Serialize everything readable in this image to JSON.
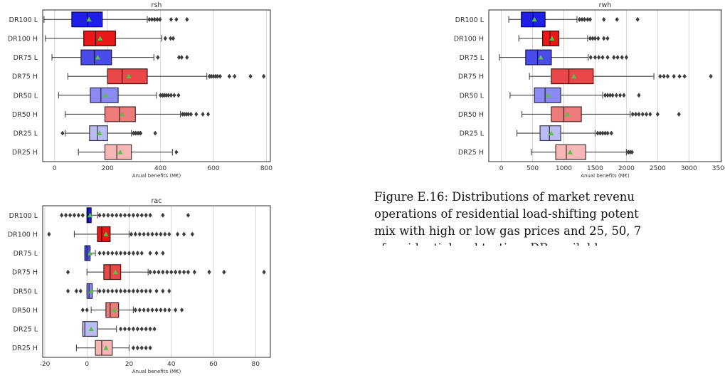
{
  "caption": {
    "lines": [
      "Figure E.16: Distributions of market revenu",
      "operations of residential load-shifting potent",
      "mix with high or low gas prices and 25, 50, 7",
      "of residential and tertiary DR available capac"
    ]
  },
  "chart_data": [
    {
      "id": "rsh",
      "type": "boxplot",
      "title": "rsh",
      "xlabel": "Anual benefits (M€)",
      "xlim": [
        -45,
        815
      ],
      "xticks": [
        0,
        200,
        400,
        600,
        800
      ],
      "grid": "vertical",
      "categories": [
        "DR100 L",
        "DR100 H",
        "DR75 L",
        "DR75 H",
        "DR50 L",
        "DR50 H",
        "DR25 L",
        "DR25 H"
      ],
      "colors": [
        "#1f1fe8",
        "#e81818",
        "#4b4bea",
        "#e84848",
        "#8a8af0",
        "#ee7b7b",
        "#bcbcf5",
        "#f5b6b6"
      ],
      "mean_marker_color": "#5cbf4a",
      "boxes": [
        {
          "whisker_low": -40,
          "q1": 65,
          "median": 125,
          "q3": 180,
          "whisker_high": 350,
          "mean": 130,
          "outliers": [
            358,
            368,
            378,
            388,
            398,
            440,
            460,
            500
          ]
        },
        {
          "whisker_low": -35,
          "q1": 110,
          "median": 155,
          "q3": 230,
          "whisker_high": 405,
          "mean": 172,
          "outliers": [
            418,
            438,
            448
          ]
        },
        {
          "whisker_low": -10,
          "q1": 100,
          "median": 150,
          "q3": 215,
          "whisker_high": 375,
          "mean": 163,
          "outliers": [
            390,
            470,
            480,
            500
          ]
        },
        {
          "whisker_low": 50,
          "q1": 200,
          "median": 255,
          "q3": 350,
          "whisker_high": 575,
          "mean": 280,
          "outliers": [
            585,
            592,
            600,
            608,
            615,
            625,
            660,
            680,
            740,
            790
          ]
        },
        {
          "whisker_low": 15,
          "q1": 135,
          "median": 175,
          "q3": 240,
          "whisker_high": 385,
          "mean": 192,
          "outliers": [
            400,
            408,
            415,
            422,
            430,
            440,
            452,
            468
          ]
        },
        {
          "whisker_low": 40,
          "q1": 190,
          "median": 245,
          "q3": 305,
          "whisker_high": 475,
          "mean": 255,
          "outliers": [
            483,
            490,
            498,
            505,
            515,
            535,
            560,
            580
          ]
        },
        {
          "whisker_low": 40,
          "q1": 132,
          "median": 162,
          "q3": 200,
          "whisker_high": 290,
          "mean": 170,
          "outliers": [
            30,
            298,
            305,
            312,
            318,
            325,
            380
          ]
        },
        {
          "whisker_low": 90,
          "q1": 190,
          "median": 235,
          "q3": 290,
          "whisker_high": 445,
          "mean": 248,
          "outliers": [
            460
          ]
        }
      ]
    },
    {
      "id": "rwh",
      "type": "boxplot",
      "title": "rwh",
      "xlabel": "Anual benefits (M€)",
      "xlim": [
        -200,
        3520
      ],
      "xticks": [
        0,
        500,
        1000,
        1500,
        2000,
        2500,
        3000,
        3500
      ],
      "grid": "vertical",
      "categories": [
        "DR100 L",
        "DR100 H",
        "DR75 L",
        "DR75 H",
        "DR50 L",
        "DR50 H",
        "DR25 L",
        "DR25 H"
      ],
      "colors": [
        "#1f1fe8",
        "#e81818",
        "#4b4bea",
        "#e84848",
        "#8a8af0",
        "#ee7b7b",
        "#bcbcf5",
        "#f5b6b6"
      ],
      "mean_marker_color": "#5cbf4a",
      "boxes": [
        {
          "whisker_low": 120,
          "q1": 320,
          "median": 510,
          "q3": 700,
          "whisker_high": 1210,
          "mean": 530,
          "outliers": [
            1250,
            1290,
            1330,
            1380,
            1420,
            1640,
            1850,
            2180
          ]
        },
        {
          "whisker_low": 280,
          "q1": 660,
          "median": 780,
          "q3": 920,
          "whisker_high": 1380,
          "mean": 810,
          "outliers": [
            1420,
            1460,
            1500,
            1550,
            1640,
            1700
          ]
        },
        {
          "whisker_low": -30,
          "q1": 390,
          "median": 580,
          "q3": 800,
          "whisker_high": 1390,
          "mean": 630,
          "outliers": [
            1430,
            1500,
            1560,
            1620,
            1700,
            1800,
            1860,
            1930,
            2000
          ]
        },
        {
          "whisker_low": 450,
          "q1": 800,
          "median": 1080,
          "q3": 1470,
          "whisker_high": 2440,
          "mean": 1160,
          "outliers": [
            2540,
            2600,
            2660,
            2760,
            2850,
            2930,
            3350
          ]
        },
        {
          "whisker_low": 140,
          "q1": 530,
          "median": 700,
          "q3": 950,
          "whisker_high": 1620,
          "mean": 750,
          "outliers": [
            1660,
            1700,
            1740,
            1780,
            1840,
            1900,
            1960,
            2200
          ]
        },
        {
          "whisker_low": 330,
          "q1": 800,
          "median": 1000,
          "q3": 1280,
          "whisker_high": 2060,
          "mean": 1060,
          "outliers": [
            2100,
            2150,
            2200,
            2260,
            2320,
            2380,
            2500,
            2840
          ]
        },
        {
          "whisker_low": 250,
          "q1": 620,
          "median": 770,
          "q3": 950,
          "whisker_high": 1500,
          "mean": 800,
          "outliers": [
            1540,
            1580,
            1620,
            1660,
            1700,
            1760
          ]
        },
        {
          "whisker_low": 480,
          "q1": 870,
          "median": 1040,
          "q3": 1350,
          "whisker_high": 2000,
          "mean": 1100,
          "outliers": [
            2030,
            2060,
            2090
          ]
        }
      ]
    },
    {
      "id": "rac",
      "type": "boxplot",
      "title": "rac",
      "xlabel": "Anual benefits (M€)",
      "xlim": [
        -21,
        87
      ],
      "xticks": [
        -20,
        0,
        20,
        40,
        60,
        80
      ],
      "grid": "vertical",
      "categories": [
        "DR100 L",
        "DR100 H",
        "DR75 L",
        "DR75 H",
        "DR50 L",
        "DR50 H",
        "DR25 L",
        "DR25 H"
      ],
      "colors": [
        "#1f1fe8",
        "#e81818",
        "#4b4bea",
        "#e84848",
        "#8a8af0",
        "#ee7b7b",
        "#bcbcf5",
        "#f5b6b6"
      ],
      "mean_marker_color": "#5cbf4a",
      "boxes": [
        {
          "whisker_low": 0,
          "q1": 0,
          "median": 0.5,
          "q3": 2,
          "whisker_high": 5,
          "mean": 1.5,
          "outliers": [
            -12,
            -10,
            -8,
            -6,
            -4,
            -2,
            6,
            8,
            10,
            12,
            14,
            16,
            18,
            20,
            22,
            24,
            26,
            28,
            30,
            36,
            48
          ]
        },
        {
          "whisker_low": -6,
          "q1": 5,
          "median": 7,
          "q3": 11,
          "whisker_high": 20,
          "mean": 9,
          "outliers": [
            -18,
            21,
            23,
            25,
            27,
            29,
            31,
            33,
            35,
            37,
            39,
            43,
            46,
            50
          ]
        },
        {
          "whisker_low": -1,
          "q1": -1,
          "median": 0,
          "q3": 1.5,
          "whisker_high": 4,
          "mean": 1.5,
          "outliers": [
            6,
            8,
            10,
            12,
            14,
            16,
            18,
            20,
            22,
            24,
            26,
            30,
            33,
            36
          ]
        },
        {
          "whisker_low": 0,
          "q1": 8,
          "median": 11,
          "q3": 16,
          "whisker_high": 29,
          "mean": 13.5,
          "outliers": [
            -9,
            30,
            32,
            34,
            36,
            38,
            40,
            42,
            44,
            46,
            48,
            51,
            58,
            65,
            84
          ]
        },
        {
          "whisker_low": 0,
          "q1": 0,
          "median": 1,
          "q3": 2.5,
          "whisker_high": 5,
          "mean": 2,
          "outliers": [
            -9,
            -5,
            -3,
            6,
            8,
            10,
            12,
            14,
            16,
            18,
            20,
            22,
            24,
            26,
            28,
            30,
            33,
            36,
            39
          ]
        },
        {
          "whisker_low": 2,
          "q1": 9,
          "median": 11,
          "q3": 15,
          "whisker_high": 22,
          "mean": 13,
          "outliers": [
            -2,
            0,
            23,
            25,
            27,
            29,
            31,
            33,
            35,
            37,
            39,
            42,
            45
          ]
        },
        {
          "whisker_low": -2,
          "q1": -2,
          "median": -1,
          "q3": 5,
          "whisker_high": 14,
          "mean": 2,
          "outliers": [
            16,
            18,
            20,
            22,
            24,
            26,
            28,
            30,
            32
          ]
        },
        {
          "whisker_low": -5,
          "q1": 4,
          "median": 7,
          "q3": 12,
          "whisker_high": 20,
          "mean": 9,
          "outliers": [
            22,
            24,
            26,
            28,
            30
          ]
        }
      ]
    }
  ]
}
